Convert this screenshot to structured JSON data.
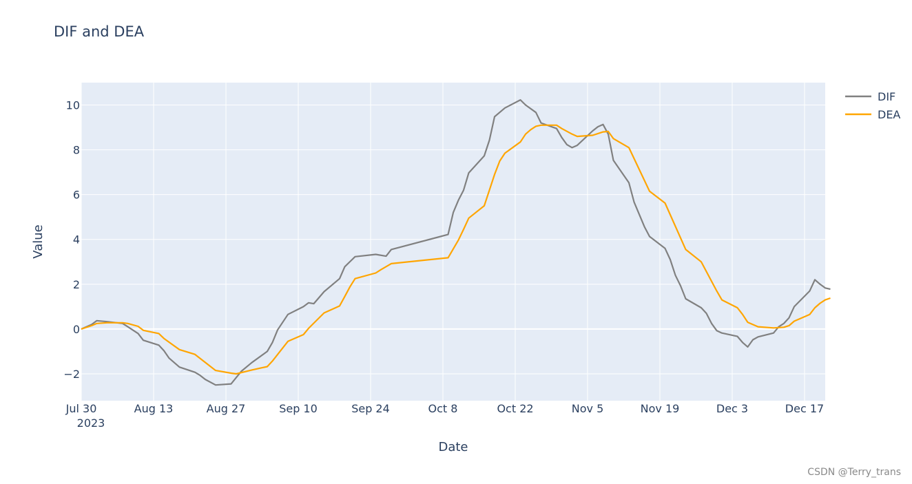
{
  "chart_data": {
    "type": "line",
    "title": "DIF and DEA",
    "xlabel": "Date",
    "ylabel": "Value",
    "xlim": [
      "2023-07-30",
      "2023-12-21"
    ],
    "ylim": [
      -3.2,
      11.0
    ],
    "x_ticks": [
      {
        "date": "2023-07-30",
        "label": "Jul 30",
        "sublabel": "2023"
      },
      {
        "date": "2023-08-13",
        "label": "Aug 13"
      },
      {
        "date": "2023-08-27",
        "label": "Aug 27"
      },
      {
        "date": "2023-09-10",
        "label": "Sep 10"
      },
      {
        "date": "2023-09-24",
        "label": "Sep 24"
      },
      {
        "date": "2023-10-08",
        "label": "Oct 8"
      },
      {
        "date": "2023-10-22",
        "label": "Oct 22"
      },
      {
        "date": "2023-11-05",
        "label": "Nov 5"
      },
      {
        "date": "2023-11-19",
        "label": "Nov 19"
      },
      {
        "date": "2023-12-03",
        "label": "Dec 3"
      },
      {
        "date": "2023-12-17",
        "label": "Dec 17"
      }
    ],
    "y_ticks": [
      {
        "value": -2,
        "label": "−2"
      },
      {
        "value": 0,
        "label": "0"
      },
      {
        "value": 2,
        "label": "2"
      },
      {
        "value": 4,
        "label": "4"
      },
      {
        "value": 6,
        "label": "6"
      },
      {
        "value": 8,
        "label": "8"
      },
      {
        "value": 10,
        "label": "10"
      }
    ],
    "grid": true,
    "legend_position": "top-right",
    "series": [
      {
        "name": "DIF",
        "color": "#808080",
        "points": [
          [
            "2023-07-30",
            0.0
          ],
          [
            "2023-08-01",
            0.2
          ],
          [
            "2023-08-02",
            0.37
          ],
          [
            "2023-08-04",
            0.33
          ],
          [
            "2023-08-07",
            0.25
          ],
          [
            "2023-08-08",
            0.1
          ],
          [
            "2023-08-10",
            -0.2
          ],
          [
            "2023-08-11",
            -0.5
          ],
          [
            "2023-08-14",
            -0.72
          ],
          [
            "2023-08-15",
            -0.97
          ],
          [
            "2023-08-16",
            -1.3
          ],
          [
            "2023-08-18",
            -1.7
          ],
          [
            "2023-08-21",
            -1.93
          ],
          [
            "2023-08-22",
            -2.07
          ],
          [
            "2023-08-23",
            -2.25
          ],
          [
            "2023-08-25",
            -2.5
          ],
          [
            "2023-08-28",
            -2.45
          ],
          [
            "2023-08-30",
            -1.88
          ],
          [
            "2023-09-01",
            -1.5
          ],
          [
            "2023-09-04",
            -1.0
          ],
          [
            "2023-09-05",
            -0.6
          ],
          [
            "2023-09-06",
            -0.04
          ],
          [
            "2023-09-08",
            0.65
          ],
          [
            "2023-09-11",
            1.0
          ],
          [
            "2023-09-12",
            1.17
          ],
          [
            "2023-09-13",
            1.13
          ],
          [
            "2023-09-15",
            1.67
          ],
          [
            "2023-09-18",
            2.25
          ],
          [
            "2023-09-19",
            2.78
          ],
          [
            "2023-09-21",
            3.23
          ],
          [
            "2023-09-25",
            3.33
          ],
          [
            "2023-09-27",
            3.25
          ],
          [
            "2023-09-28",
            3.55
          ],
          [
            "2023-10-09",
            4.22
          ],
          [
            "2023-10-10",
            5.2
          ],
          [
            "2023-10-11",
            5.75
          ],
          [
            "2023-10-12",
            6.2
          ],
          [
            "2023-10-13",
            6.97
          ],
          [
            "2023-10-16",
            7.73
          ],
          [
            "2023-10-17",
            8.43
          ],
          [
            "2023-10-18",
            9.48
          ],
          [
            "2023-10-20",
            9.87
          ],
          [
            "2023-10-23",
            10.23
          ],
          [
            "2023-10-24",
            10.0
          ],
          [
            "2023-10-26",
            9.67
          ],
          [
            "2023-10-27",
            9.2
          ],
          [
            "2023-10-30",
            8.95
          ],
          [
            "2023-10-31",
            8.55
          ],
          [
            "2023-11-01",
            8.23
          ],
          [
            "2023-11-02",
            8.1
          ],
          [
            "2023-11-03",
            8.2
          ],
          [
            "2023-11-06",
            8.85
          ],
          [
            "2023-11-07",
            9.03
          ],
          [
            "2023-11-08",
            9.13
          ],
          [
            "2023-11-09",
            8.7
          ],
          [
            "2023-11-10",
            7.53
          ],
          [
            "2023-11-13",
            6.53
          ],
          [
            "2023-11-14",
            5.67
          ],
          [
            "2023-11-16",
            4.57
          ],
          [
            "2023-11-17",
            4.13
          ],
          [
            "2023-11-20",
            3.6
          ],
          [
            "2023-11-21",
            3.1
          ],
          [
            "2023-11-22",
            2.4
          ],
          [
            "2023-11-23",
            1.93
          ],
          [
            "2023-11-24",
            1.35
          ],
          [
            "2023-11-27",
            0.95
          ],
          [
            "2023-11-28",
            0.7
          ],
          [
            "2023-11-29",
            0.25
          ],
          [
            "2023-11-30",
            -0.07
          ],
          [
            "2023-12-01",
            -0.18
          ],
          [
            "2023-12-04",
            -0.33
          ],
          [
            "2023-12-05",
            -0.6
          ],
          [
            "2023-12-06",
            -0.8
          ],
          [
            "2023-12-07",
            -0.48
          ],
          [
            "2023-12-08",
            -0.35
          ],
          [
            "2023-12-11",
            -0.18
          ],
          [
            "2023-12-12",
            0.1
          ],
          [
            "2023-12-13",
            0.25
          ],
          [
            "2023-12-14",
            0.5
          ],
          [
            "2023-12-15",
            1.0
          ],
          [
            "2023-12-18",
            1.7
          ],
          [
            "2023-12-19",
            2.2
          ],
          [
            "2023-12-20",
            2.0
          ],
          [
            "2023-12-21",
            1.83
          ],
          [
            "2023-12-22",
            1.78
          ]
        ]
      },
      {
        "name": "DEA",
        "color": "#ffa500",
        "points": [
          [
            "2023-07-30",
            0.0
          ],
          [
            "2023-08-01",
            0.15
          ],
          [
            "2023-08-02",
            0.25
          ],
          [
            "2023-08-04",
            0.28
          ],
          [
            "2023-08-07",
            0.28
          ],
          [
            "2023-08-08",
            0.25
          ],
          [
            "2023-08-10",
            0.12
          ],
          [
            "2023-08-11",
            -0.06
          ],
          [
            "2023-08-14",
            -0.2
          ],
          [
            "2023-08-15",
            -0.42
          ],
          [
            "2023-08-18",
            -0.92
          ],
          [
            "2023-08-21",
            -1.13
          ],
          [
            "2023-08-25",
            -1.85
          ],
          [
            "2023-08-28",
            -1.97
          ],
          [
            "2023-08-29",
            -2.0
          ],
          [
            "2023-09-01",
            -1.83
          ],
          [
            "2023-09-04",
            -1.68
          ],
          [
            "2023-09-05",
            -1.43
          ],
          [
            "2023-09-08",
            -0.55
          ],
          [
            "2023-09-11",
            -0.25
          ],
          [
            "2023-09-12",
            0.03
          ],
          [
            "2023-09-15",
            0.72
          ],
          [
            "2023-09-18",
            1.03
          ],
          [
            "2023-09-19",
            1.45
          ],
          [
            "2023-09-20",
            1.88
          ],
          [
            "2023-09-21",
            2.25
          ],
          [
            "2023-09-25",
            2.5
          ],
          [
            "2023-09-26",
            2.65
          ],
          [
            "2023-09-28",
            2.92
          ],
          [
            "2023-10-09",
            3.18
          ],
          [
            "2023-10-11",
            3.97
          ],
          [
            "2023-10-12",
            4.45
          ],
          [
            "2023-10-13",
            4.95
          ],
          [
            "2023-10-16",
            5.5
          ],
          [
            "2023-10-17",
            6.2
          ],
          [
            "2023-10-18",
            6.9
          ],
          [
            "2023-10-19",
            7.5
          ],
          [
            "2023-10-20",
            7.85
          ],
          [
            "2023-10-23",
            8.35
          ],
          [
            "2023-10-24",
            8.7
          ],
          [
            "2023-10-25",
            8.9
          ],
          [
            "2023-10-26",
            9.05
          ],
          [
            "2023-10-27",
            9.1
          ],
          [
            "2023-10-30",
            9.1
          ],
          [
            "2023-10-31",
            8.95
          ],
          [
            "2023-11-02",
            8.7
          ],
          [
            "2023-11-03",
            8.6
          ],
          [
            "2023-11-06",
            8.65
          ],
          [
            "2023-11-08",
            8.8
          ],
          [
            "2023-11-09",
            8.82
          ],
          [
            "2023-11-10",
            8.5
          ],
          [
            "2023-11-13",
            8.1
          ],
          [
            "2023-11-17",
            6.15
          ],
          [
            "2023-11-20",
            5.62
          ],
          [
            "2023-11-24",
            3.55
          ],
          [
            "2023-11-27",
            3.0
          ],
          [
            "2023-11-30",
            1.7
          ],
          [
            "2023-12-01",
            1.3
          ],
          [
            "2023-12-04",
            0.95
          ],
          [
            "2023-12-05",
            0.65
          ],
          [
            "2023-12-06",
            0.3
          ],
          [
            "2023-12-08",
            0.1
          ],
          [
            "2023-12-11",
            0.05
          ],
          [
            "2023-12-13",
            0.08
          ],
          [
            "2023-12-14",
            0.15
          ],
          [
            "2023-12-15",
            0.35
          ],
          [
            "2023-12-18",
            0.65
          ],
          [
            "2023-12-19",
            0.95
          ],
          [
            "2023-12-20",
            1.15
          ],
          [
            "2023-12-21",
            1.3
          ],
          [
            "2023-12-22",
            1.38
          ]
        ]
      }
    ]
  },
  "watermark": "CSDN @Terry_trans"
}
